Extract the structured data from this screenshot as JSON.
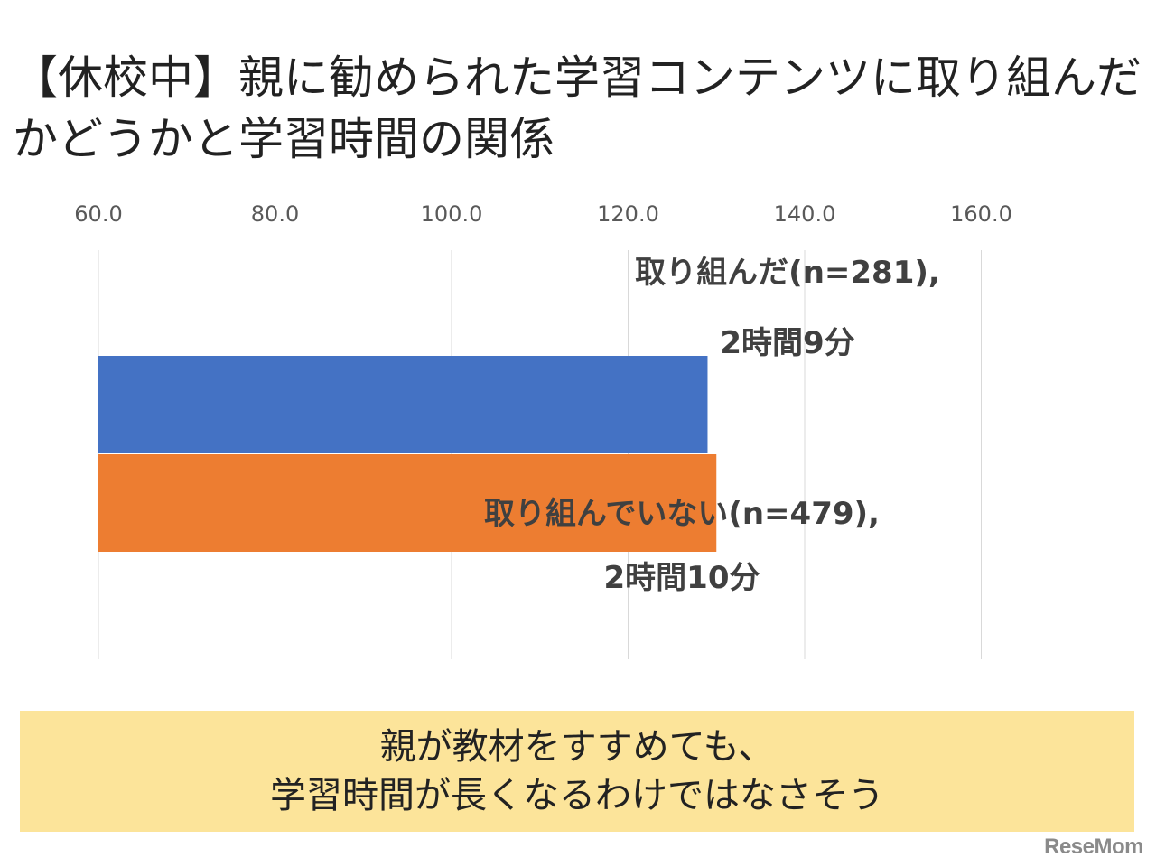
{
  "header": {
    "title": "【休校中】親に勧められた学習コンテンツに取り組んだかどうかと学習時間の関係"
  },
  "chart_data": {
    "type": "bar",
    "orientation": "horizontal",
    "title": "【休校中】親に勧められた学習コンテンツに取り組んだかどうかと学習時間の関係",
    "xlim": [
      60,
      170
    ],
    "x_ticks": [
      "60.0",
      "80.0",
      "100.0",
      "120.0",
      "140.0",
      "160.0"
    ],
    "grid": true,
    "legend": "none",
    "series": [
      {
        "label_line1": "取り組んだ(n=281),",
        "label_line2": "2時間9分",
        "value": 129,
        "color": "#4472c4"
      },
      {
        "label_line1": "取り組んでいない(n=479),",
        "label_line2": "2時間10分",
        "value": 130,
        "color": "#ed7d31"
      }
    ]
  },
  "conclusion": {
    "line1": "親が教材をすすめても、",
    "line2": "学習時間が長くなるわけではなさそう"
  },
  "logo": {
    "text": "ReseMom"
  },
  "colors": {
    "conclusion_bg": "#fce49a",
    "grid": "#d9d9d9"
  }
}
